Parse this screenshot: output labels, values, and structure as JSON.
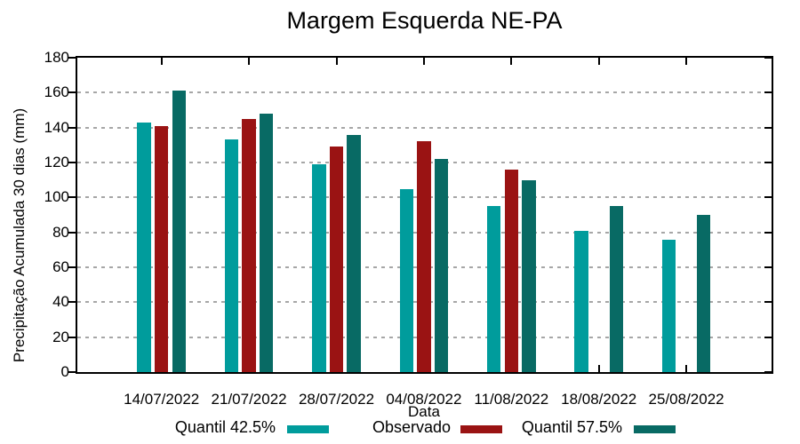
{
  "chart_data": {
    "type": "bar",
    "title": "Margem Esquerda NE-PA",
    "xlabel": "Data",
    "ylabel": "Precipitação Acumulada 30 dias (mm)",
    "ylim": [
      0,
      180
    ],
    "yticks": [
      0,
      20,
      40,
      60,
      80,
      100,
      120,
      140,
      160,
      180
    ],
    "grid": "horizontal dashed gridlines at 20..160",
    "legend_position": "bottom",
    "categories": [
      "14/07/2022",
      "21/07/2022",
      "28/07/2022",
      "04/08/2022",
      "11/08/2022",
      "18/08/2022",
      "25/08/2022"
    ],
    "series": [
      {
        "name": "Quantil 42.5%",
        "color": "#009c9c",
        "values": [
          143,
          133,
          119,
          105,
          95,
          81,
          76
        ]
      },
      {
        "name": "Observado",
        "color": "#9a1313",
        "values": [
          141,
          145,
          129,
          132,
          116,
          null,
          null
        ]
      },
      {
        "name": "Quantil 57.5%",
        "color": "#086a64",
        "values": [
          161,
          148,
          136,
          122,
          110,
          95,
          90
        ]
      }
    ]
  },
  "colors": {
    "axis": "#000000",
    "grid": "#a6a6a6",
    "background": "#ffffff"
  }
}
